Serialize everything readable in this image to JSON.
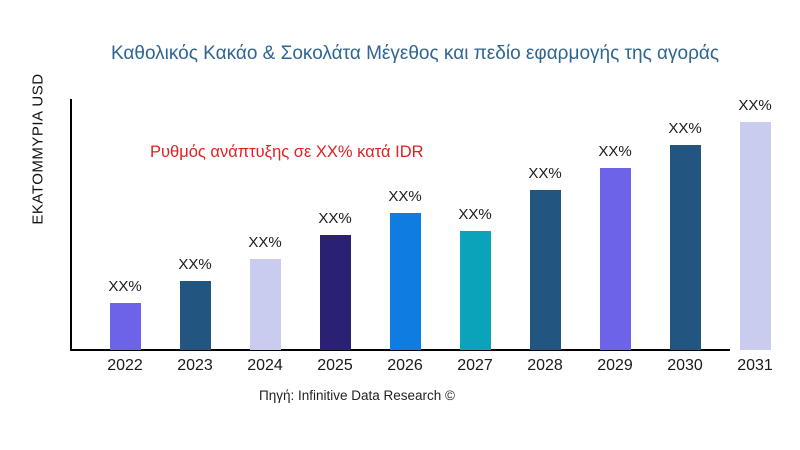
{
  "page": {
    "title": "Καθολικός Κακάο & Σοκολάτα Μέγεθος και πεδίο εφαρμογής της αγοράς",
    "y_axis_label": "ΕΚΑΤΟΜΜΥΡΙΑ USD",
    "growth_annotation": "Ρυθμός ανάπτυξης σε XX% κατά IDR",
    "source": "Πηγή: Infinitive Data Research ©"
  },
  "colors": {
    "title": "#2F6593",
    "annotation": "#E02020",
    "axis": "#000000",
    "label_text": "#1A1A1A",
    "background": "#FFFFFF"
  },
  "chart_data": {
    "type": "bar",
    "title": "Καθολικός Κακάο & Σοκολάτα Μέγεθος και πεδίο εφαρμογής της αγοράς",
    "xlabel": "",
    "ylabel": "ΕΚΑΤΟΜΜΥΡΙΑ USD",
    "categories": [
      "2022",
      "2023",
      "2024",
      "2025",
      "2026",
      "2027",
      "2028",
      "2029",
      "2030",
      "2031"
    ],
    "values": [
      47,
      69,
      91,
      115,
      137,
      119,
      160,
      182,
      205,
      228
    ],
    "values_note": "Numeric values are masked in the chart as 'XX%'; values above are relative bar heights read from pixels.",
    "value_labels": [
      "XX%",
      "XX%",
      "XX%",
      "XX%",
      "XX%",
      "XX%",
      "XX%",
      "XX%",
      "XX%",
      "XX%"
    ],
    "bar_colors": [
      "#6C63E8",
      "#225580",
      "#CACCEF",
      "#2B2173",
      "#0E7CE0",
      "#0AA3BA",
      "#225580",
      "#6C63E8",
      "#225580",
      "#CACCEF"
    ],
    "ylim": [
      0,
      250
    ],
    "grid": false,
    "legend": false,
    "annotation": "Ρυθμός ανάπτυξης σε XX% κατά IDR",
    "source": "Πηγή: Infinitive Data Research ©"
  }
}
